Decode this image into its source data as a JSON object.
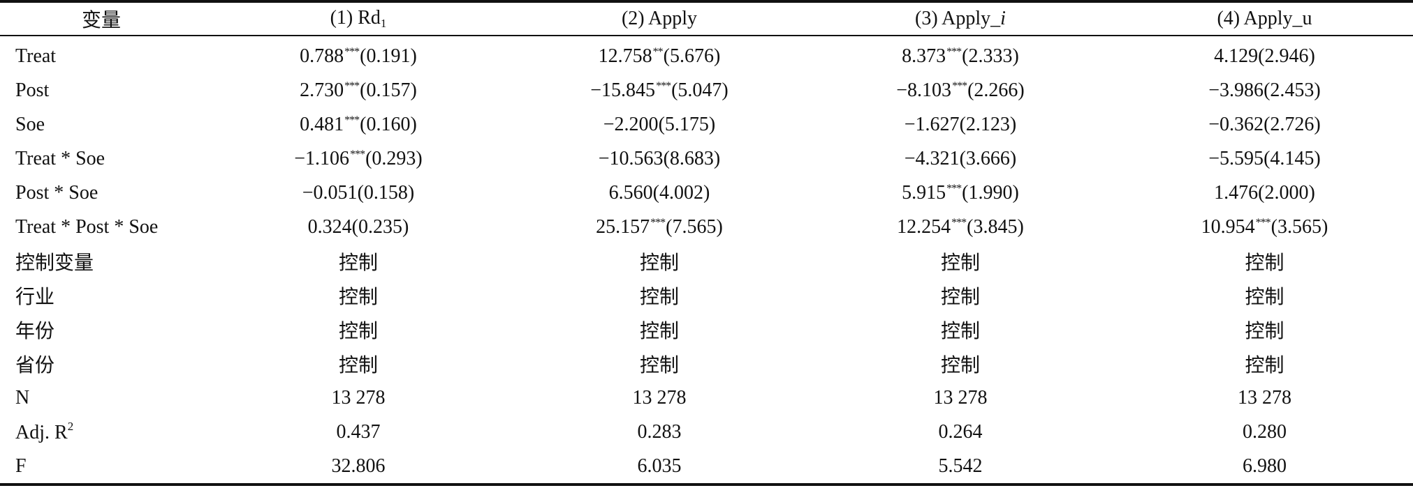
{
  "table": {
    "header": [
      {
        "label": "变量"
      },
      {
        "label": "(1) Rd",
        "sub": "1"
      },
      {
        "label": "(2) Apply"
      },
      {
        "label": "(3) Apply_",
        "italic": "i"
      },
      {
        "label": "(4) Apply_u"
      }
    ],
    "rows": [
      {
        "name": {
          "label": "Treat"
        },
        "cells": [
          {
            "value": "0.788",
            "stars": "***",
            "se": "(0.191)"
          },
          {
            "value": "12.758",
            "stars": "**",
            "se": "(5.676)"
          },
          {
            "value": "8.373",
            "stars": "***",
            "se": "(2.333)"
          },
          {
            "value": "4.129",
            "se": "(2.946)"
          }
        ]
      },
      {
        "name": {
          "label": "Post"
        },
        "cells": [
          {
            "value": "2.730",
            "stars": "***",
            "se": "(0.157)"
          },
          {
            "value": "−15.845",
            "stars": "***",
            "se": "(5.047)"
          },
          {
            "value": "−8.103",
            "stars": "***",
            "se": "(2.266)"
          },
          {
            "value": "−3.986",
            "se": "(2.453)"
          }
        ]
      },
      {
        "name": {
          "label": "Soe"
        },
        "cells": [
          {
            "value": "0.481",
            "stars": "***",
            "se": "(0.160)"
          },
          {
            "value": "−2.200",
            "se": "(5.175)"
          },
          {
            "value": "−1.627",
            "se": "(2.123)"
          },
          {
            "value": "−0.362",
            "se": "(2.726)"
          }
        ]
      },
      {
        "name": {
          "label": "Treat * Soe"
        },
        "cells": [
          {
            "value": "−1.106",
            "stars": "***",
            "se": "(0.293)"
          },
          {
            "value": "−10.563",
            "se": "(8.683)"
          },
          {
            "value": "−4.321",
            "se": "(3.666)"
          },
          {
            "value": "−5.595",
            "se": "(4.145)"
          }
        ]
      },
      {
        "name": {
          "label": "Post * Soe"
        },
        "cells": [
          {
            "value": "−0.051",
            "se": "(0.158)"
          },
          {
            "value": "6.560",
            "se": "(4.002)"
          },
          {
            "value": "5.915",
            "stars": "***",
            "se": "(1.990)"
          },
          {
            "value": "1.476",
            "se": "(2.000)"
          }
        ]
      },
      {
        "name": {
          "label": "Treat * Post * Soe"
        },
        "cells": [
          {
            "value": "0.324",
            "se": "(0.235)"
          },
          {
            "value": "25.157",
            "stars": "***",
            "se": "(7.565)"
          },
          {
            "value": "12.254",
            "stars": "***",
            "se": "(3.845)"
          },
          {
            "value": "10.954",
            "stars": "***",
            "se": "(3.565)"
          }
        ]
      },
      {
        "name": {
          "label": "控制变量"
        },
        "cells": [
          {
            "value": "控制"
          },
          {
            "value": "控制"
          },
          {
            "value": "控制"
          },
          {
            "value": "控制"
          }
        ]
      },
      {
        "name": {
          "label": "行业"
        },
        "cells": [
          {
            "value": "控制"
          },
          {
            "value": "控制"
          },
          {
            "value": "控制"
          },
          {
            "value": "控制"
          }
        ]
      },
      {
        "name": {
          "label": "年份"
        },
        "cells": [
          {
            "value": "控制"
          },
          {
            "value": "控制"
          },
          {
            "value": "控制"
          },
          {
            "value": "控制"
          }
        ]
      },
      {
        "name": {
          "label": "省份"
        },
        "cells": [
          {
            "value": "控制"
          },
          {
            "value": "控制"
          },
          {
            "value": "控制"
          },
          {
            "value": "控制"
          }
        ]
      },
      {
        "name": {
          "label": "N"
        },
        "cells": [
          {
            "value": "13 278"
          },
          {
            "value": "13 278"
          },
          {
            "value": "13 278"
          },
          {
            "value": "13 278"
          }
        ]
      },
      {
        "name": {
          "label": "Adj. R",
          "sup": "2"
        },
        "cells": [
          {
            "value": "0.437"
          },
          {
            "value": "0.283"
          },
          {
            "value": "0.264"
          },
          {
            "value": "0.280"
          }
        ]
      },
      {
        "name": {
          "label": "F"
        },
        "cells": [
          {
            "value": "32.806"
          },
          {
            "value": "6.035"
          },
          {
            "value": "5.542"
          },
          {
            "value": "6.980"
          }
        ]
      }
    ]
  }
}
